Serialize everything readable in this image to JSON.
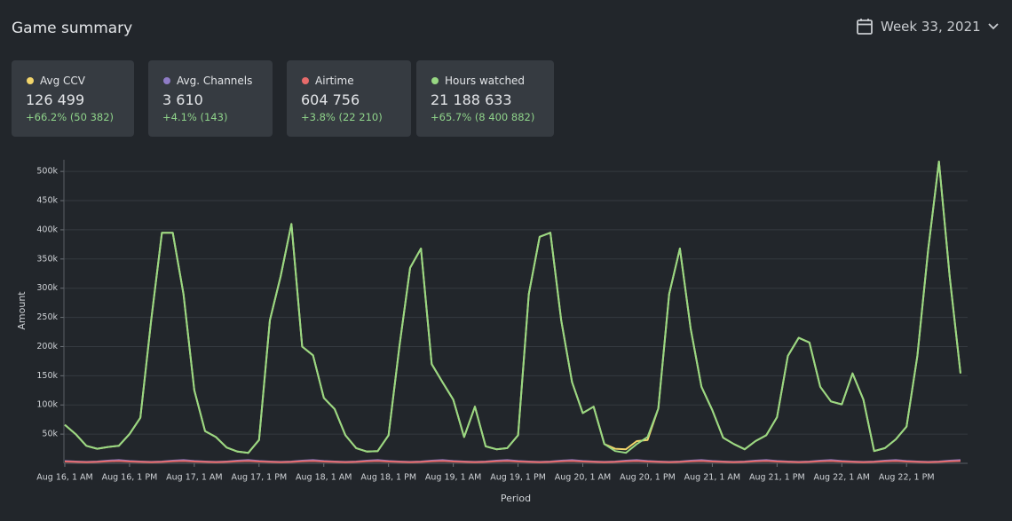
{
  "header": {
    "title": "Game summary",
    "period": "Week 33, 2021"
  },
  "cards": [
    {
      "value": "126 499",
      "change": "+66.2% (50 382)"
    },
    {
      "value": "3 610",
      "change": "+4.1% (143)"
    },
    {
      "value": "604 756",
      "change": "+3.8% (22 210)"
    },
    {
      "value": "21 188 633",
      "change": "+65.7% (8 400 882)"
    }
  ],
  "chart_data": {
    "type": "line",
    "x_label": "Period",
    "y_label": "Amount",
    "categories": [
      "Aug 16, 1 AM",
      null,
      null,
      null,
      null,
      null,
      "Aug 16, 1 PM",
      null,
      null,
      null,
      null,
      null,
      "Aug 17, 1 AM",
      null,
      null,
      null,
      null,
      null,
      "Aug 17, 1 PM",
      null,
      null,
      null,
      null,
      null,
      "Aug 18, 1 AM",
      null,
      null,
      null,
      null,
      null,
      "Aug 18, 1 PM",
      null,
      null,
      null,
      null,
      null,
      "Aug 19, 1 AM",
      null,
      null,
      null,
      null,
      null,
      "Aug 19, 1 PM",
      null,
      null,
      null,
      null,
      null,
      "Aug 20, 1 AM",
      null,
      null,
      null,
      null,
      null,
      "Aug 20, 1 PM",
      null,
      null,
      null,
      null,
      null,
      "Aug 21, 1 AM",
      null,
      null,
      null,
      null,
      null,
      "Aug 21, 1 PM",
      null,
      null,
      null,
      null,
      null,
      "Aug 22, 1 AM",
      null,
      null,
      null,
      null,
      null,
      "Aug 22, 1 PM",
      null,
      null,
      null,
      null,
      null
    ],
    "ylim": [
      0,
      520000
    ],
    "yticks": [
      {
        "value": 50000,
        "label": "50k"
      },
      {
        "value": 100000,
        "label": "100k"
      },
      {
        "value": 150000,
        "label": "150k"
      },
      {
        "value": 200000,
        "label": "200k"
      },
      {
        "value": 250000,
        "label": "250k"
      },
      {
        "value": 300000,
        "label": "300k"
      },
      {
        "value": 350000,
        "label": "350k"
      },
      {
        "value": 400000,
        "label": "400k"
      },
      {
        "value": 450000,
        "label": "450k"
      },
      {
        "value": 500000,
        "label": "500k"
      }
    ],
    "grid": true,
    "series": [
      {
        "name": "Avg CCV",
        "color": "#f2d56b",
        "values": [
          66000,
          50000,
          30000,
          25000,
          28000,
          30000,
          50000,
          78000,
          245000,
          395000,
          395000,
          290000,
          125000,
          55000,
          45000,
          27000,
          20000,
          18000,
          40000,
          245000,
          320000,
          410000,
          200000,
          185000,
          112000,
          93000,
          48000,
          26000,
          20000,
          21000,
          48000,
          200000,
          335000,
          368000,
          170000,
          139000,
          109000,
          45000,
          97000,
          29000,
          24000,
          26000,
          48000,
          290000,
          388000,
          395000,
          245000,
          139000,
          86000,
          97000,
          33000,
          25000,
          24000,
          38000,
          40000,
          94000,
          290000,
          368000,
          230000,
          131000,
          91000,
          44000,
          33000,
          24000,
          38000,
          48000,
          79000,
          184000,
          215000,
          207000,
          131000,
          106000,
          101000,
          154000,
          109000,
          21000,
          26000,
          41000,
          63000,
          184000,
          365000,
          517000,
          320000,
          154000
        ]
      },
      {
        "name": "Avg. Channels",
        "color": "#8f7cc6",
        "values": [
          4000,
          3000,
          2500,
          3000,
          4500,
          5500,
          4000,
          3000,
          2500,
          3000,
          4500,
          5500,
          4000,
          3000,
          2500,
          3000,
          4500,
          5500,
          4000,
          3000,
          2500,
          3000,
          4500,
          5500,
          4000,
          3000,
          2500,
          3000,
          4500,
          5500,
          4000,
          3000,
          2500,
          3000,
          4500,
          5500,
          4000,
          3000,
          2500,
          3000,
          4500,
          5500,
          4000,
          3000,
          2500,
          3000,
          4500,
          5500,
          4000,
          3000,
          2500,
          3000,
          4500,
          5500,
          4000,
          3000,
          2500,
          3000,
          4500,
          5500,
          4000,
          3000,
          2500,
          3000,
          4500,
          5500,
          4000,
          3000,
          2500,
          3000,
          4500,
          5500,
          4000,
          3000,
          2500,
          3000,
          4500,
          5500,
          4000,
          3000,
          2500,
          3000,
          4500,
          5500
        ]
      },
      {
        "name": "Airtime",
        "color": "#e86b6b",
        "values": [
          3000,
          2500,
          2000,
          2500,
          3500,
          4000,
          3000,
          2500,
          2000,
          2500,
          3500,
          4000,
          3000,
          2500,
          2000,
          2500,
          3500,
          4000,
          3000,
          2500,
          2000,
          2500,
          3500,
          4000,
          3000,
          2500,
          2000,
          2500,
          3500,
          4000,
          3000,
          2500,
          2000,
          2500,
          3500,
          4000,
          3000,
          2500,
          2000,
          2500,
          3500,
          4000,
          3000,
          2500,
          2000,
          2500,
          3500,
          4000,
          3000,
          2500,
          2000,
          2500,
          3500,
          4000,
          3000,
          2500,
          2000,
          2500,
          3500,
          4000,
          3000,
          2500,
          2000,
          2500,
          3500,
          4000,
          3000,
          2500,
          2000,
          2500,
          3500,
          4000,
          3000,
          2500,
          2000,
          2500,
          3500,
          4000,
          3000,
          2500,
          2000,
          2500,
          3500,
          4000
        ]
      },
      {
        "name": "Hours watched",
        "color": "#98d883",
        "values": [
          66000,
          50000,
          30000,
          25000,
          28000,
          30000,
          50000,
          78000,
          245000,
          395000,
          395000,
          290000,
          125000,
          55000,
          45000,
          27000,
          20000,
          18000,
          40000,
          245000,
          320000,
          410000,
          200000,
          185000,
          112000,
          93000,
          48000,
          26000,
          20000,
          21000,
          48000,
          200000,
          335000,
          368000,
          170000,
          139000,
          109000,
          45000,
          97000,
          29000,
          24000,
          26000,
          48000,
          290000,
          388000,
          395000,
          245000,
          139000,
          86000,
          97000,
          33000,
          21000,
          18000,
          33000,
          45000,
          94000,
          290000,
          368000,
          230000,
          131000,
          91000,
          44000,
          33000,
          24000,
          38000,
          48000,
          79000,
          184000,
          215000,
          207000,
          131000,
          106000,
          101000,
          154000,
          109000,
          21000,
          26000,
          41000,
          63000,
          184000,
          365000,
          517000,
          320000,
          154000
        ]
      }
    ]
  }
}
